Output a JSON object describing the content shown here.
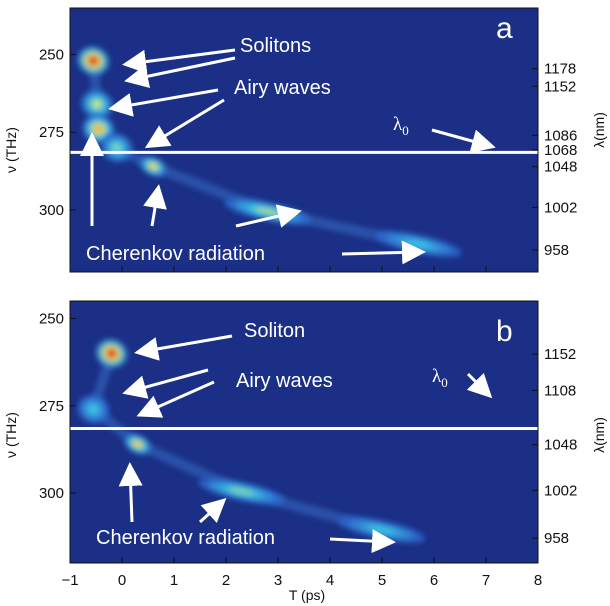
{
  "chart_data": [
    {
      "type": "heatmap",
      "panel_label": "a",
      "ylabel": "ν (THz)",
      "ylabel_right": "λ(nm)",
      "xlabel": "",
      "xlim": [
        -1,
        8
      ],
      "ylim": [
        320,
        235
      ],
      "yticks": [
        250,
        275,
        300
      ],
      "right_ticks": [
        {
          "label": "1178",
          "nu": 254.5
        },
        {
          "label": "1152",
          "nu": 260.2
        },
        {
          "label": "1086",
          "nu": 276.0
        },
        {
          "label": "1068",
          "nu": 280.7
        },
        {
          "label": "1048",
          "nu": 286.1
        },
        {
          "label": "1002",
          "nu": 299.2
        },
        {
          "label": "958",
          "nu": 312.9
        }
      ],
      "lambda0_nu": 281.5,
      "lambda0_label": "λ₀",
      "features": [
        {
          "t": -0.55,
          "nu": 252,
          "amp": 1.0
        },
        {
          "t": -0.48,
          "nu": 266,
          "amp": 0.55
        },
        {
          "t": -0.45,
          "nu": 274,
          "amp": 0.75
        },
        {
          "t": -0.1,
          "nu": 280,
          "amp": 0.45
        },
        {
          "t": 0.6,
          "nu": 286,
          "amp": 0.65
        },
        {
          "t": 2.8,
          "nu": 300.5,
          "amp": 0.5
        },
        {
          "t": 5.7,
          "nu": 311,
          "amp": 0.35
        }
      ],
      "annotations": [
        {
          "text": "Solitons"
        },
        {
          "text": "Airy waves"
        },
        {
          "text": "Cherenkov radiation"
        }
      ]
    },
    {
      "type": "heatmap",
      "panel_label": "b",
      "ylabel": "ν (THz)",
      "ylabel_right": "λ(nm)",
      "xlabel": "T (ps)",
      "xlim": [
        -1,
        8
      ],
      "ylim": [
        320,
        245
      ],
      "xticks": [
        -1,
        0,
        1,
        2,
        3,
        4,
        5,
        6,
        7,
        8
      ],
      "yticks": [
        250,
        275,
        300
      ],
      "right_ticks": [
        {
          "label": "1152",
          "nu": 260.2
        },
        {
          "label": "1108",
          "nu": 270.6
        },
        {
          "label": "1048",
          "nu": 286.1
        },
        {
          "label": "1002",
          "nu": 299.2
        },
        {
          "label": "958",
          "nu": 312.9
        }
      ],
      "lambda0_nu": 281.5,
      "lambda0_label": "λ₀",
      "features": [
        {
          "t": -0.2,
          "nu": 260,
          "amp": 1.0
        },
        {
          "t": -0.55,
          "nu": 276,
          "amp": 0.35
        },
        {
          "t": 0.3,
          "nu": 286,
          "amp": 0.7
        },
        {
          "t": 2.3,
          "nu": 299.5,
          "amp": 0.45
        },
        {
          "t": 5.0,
          "nu": 310.5,
          "amp": 0.35
        }
      ],
      "annotations": [
        {
          "text": "Soliton"
        },
        {
          "text": "Airy waves"
        },
        {
          "text": "Cherenkov radiation"
        }
      ]
    }
  ],
  "colors": {
    "background": "#1a2f85",
    "line": "#ffffff"
  }
}
